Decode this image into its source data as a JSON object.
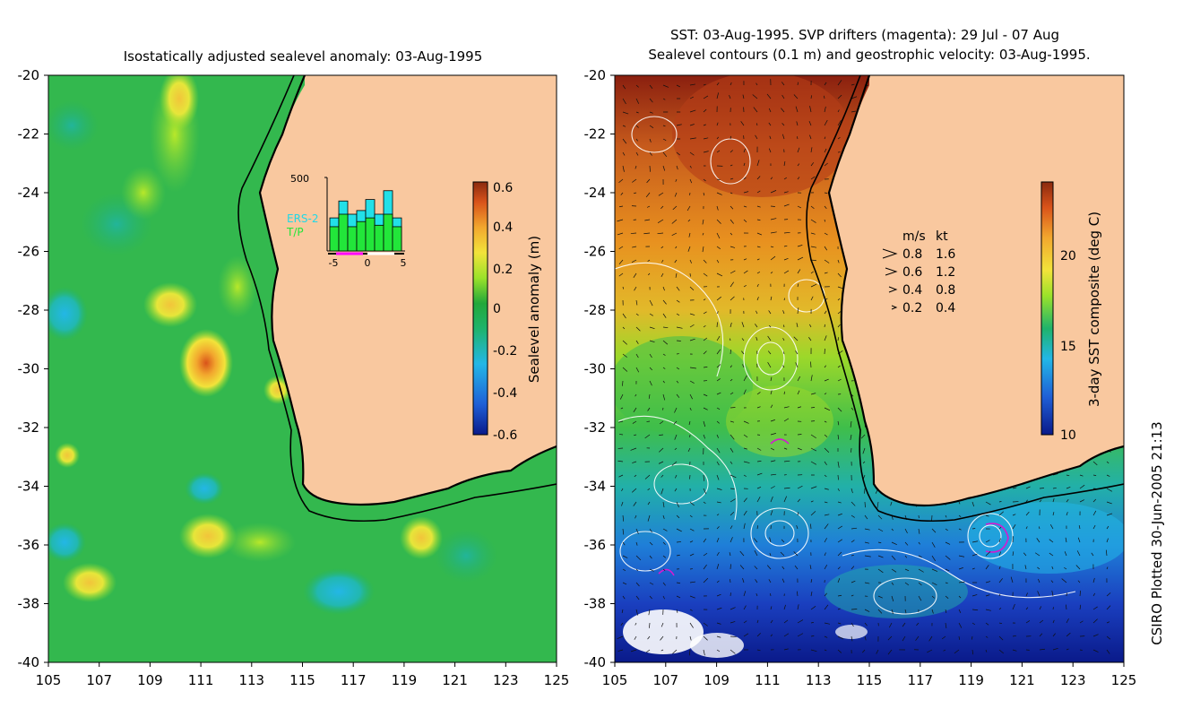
{
  "left_panel": {
    "title": "Isostatically adjusted sealevel anomaly: 03-Aug-1995",
    "colorbar": {
      "label": "Sealevel anomaly (m)",
      "ticks": [
        "0.6",
        "0.4",
        "0.2",
        "0",
        "-0.2",
        "-0.4",
        "-0.6"
      ],
      "colors": [
        "#0a1a8a",
        "#1f5fd6",
        "#23b7e6",
        "#1fb36b",
        "#22a83a",
        "#9be22a",
        "#f2e33a",
        "#f2a72e",
        "#d9531a",
        "#8a2a0f"
      ]
    },
    "inset": {
      "ymax_label": "500",
      "legend_ers": "ERS-2",
      "legend_tp": "T/P",
      "x_ticks": [
        "-5",
        "0",
        "5"
      ],
      "bars_tp": [
        0.33,
        0.5,
        0.33,
        0.4,
        0.45,
        0.35,
        0.5,
        0.33
      ],
      "bars_ers": [
        0.45,
        0.68,
        0.5,
        0.55,
        0.7,
        0.5,
        0.82,
        0.45
      ]
    }
  },
  "right_panel": {
    "title_line1": "SST: 03-Aug-1995. SVP drifters (magenta): 29 Jul - 07 Aug",
    "title_line2": "Sealevel contours (0.1 m) and geostrophic velocity: 03-Aug-1995.",
    "colorbar": {
      "label": "3-day SST composite (deg C)",
      "ticks": [
        "20",
        "15",
        "10"
      ],
      "colors": [
        "#0a1a8a",
        "#1f5fd6",
        "#23b7e6",
        "#1fb36b",
        "#22a83a",
        "#9be22a",
        "#f2e33a",
        "#f2a72e",
        "#d9531a",
        "#8a2a0f"
      ]
    },
    "velocity_legend": {
      "header_ms": "m/s",
      "header_kt": "kt",
      "rows": [
        {
          "ms": "0.8",
          "kt": "1.6"
        },
        {
          "ms": "0.6",
          "kt": "1.2"
        },
        {
          "ms": "0.4",
          "kt": "0.8"
        },
        {
          "ms": "0.2",
          "kt": "0.4"
        }
      ]
    }
  },
  "axes": {
    "y_ticks": [
      "-20",
      "-22",
      "-24",
      "-26",
      "-28",
      "-30",
      "-32",
      "-34",
      "-36",
      "-38",
      "-40"
    ],
    "x_ticks": [
      "105",
      "107",
      "109",
      "111",
      "113",
      "115",
      "117",
      "119",
      "121",
      "123",
      "125"
    ]
  },
  "credit": "CSIRO Plotted 30-Jun-2005 21:13",
  "colors": {
    "land": "#f9c89f",
    "ocean_left": "#33b84e",
    "coast": "#000000"
  }
}
